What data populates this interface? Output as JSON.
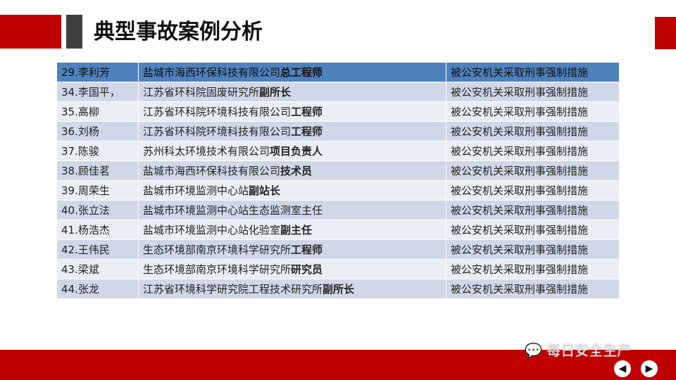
{
  "title": "典型事故案例分析",
  "rows": [
    {
      "name": "29.李利芳",
      "org": "盐城市海西环保科技有限公司",
      "role": "总工程师",
      "status": "被公安机关采取刑事强制措施"
    },
    {
      "name": "34.李国平，",
      "org": "江苏省环科院固废研究所",
      "role": "副所长",
      "status": "被公安机关采取刑事强制措施"
    },
    {
      "name": "35.高柳",
      "org": "江苏省环科院环境科技有限公司",
      "role": "工程师",
      "status": "被公安机关采取刑事强制措施"
    },
    {
      "name": "36.刘杨",
      "org": "江苏省环科院环境科技有限公司",
      "role": "工程师",
      "status": "被公安机关采取刑事强制措施"
    },
    {
      "name": "37.陈骏",
      "org": "苏州科太环境技术有限公司",
      "role": "项目负责人",
      "status": "被公安机关采取刑事强制措施"
    },
    {
      "name": "38.顾佳茗",
      "org": "盐城市海西环保科技有限公司",
      "role": "技术员",
      "status": "被公安机关采取刑事强制措施"
    },
    {
      "name": "39.周荣生",
      "org": "盐城市环境监测中心站",
      "role": "副站长",
      "status": "被公安机关采取刑事强制措施"
    },
    {
      "name": "40.张立法",
      "org": "盐城市环境监测中心站生态监测室主任",
      "role": "",
      "status": "被公安机关采取刑事强制措施"
    },
    {
      "name": "41.杨浩杰",
      "org": "盐城市环境监测中心站化验室",
      "role": "副主任",
      "status": "被公安机关采取刑事强制措施"
    },
    {
      "name": "42.王伟民",
      "org": "生态环境部南京环境科学研究所",
      "role": "工程师",
      "status": "被公安机关采取刑事强制措施"
    },
    {
      "name": "43.梁斌",
      "org": "生态环境部南京环境科学研究所",
      "role": "研究员",
      "status": "被公安机关采取刑事强制措施"
    },
    {
      "name": "44.张龙",
      "org": "江苏省环境科学研究院工程技术研究所",
      "role": "副所长",
      "status": "被公安机关采取刑事强制措施"
    }
  ],
  "watermark": "每日安全生产",
  "nav": {
    "prev_icon": "arrow-left-icon",
    "next_icon": "arrow-right-icon",
    "prev": "◀",
    "next": "▶"
  },
  "colors": {
    "red": "#c00000",
    "header": "#4f81bd",
    "row_dark": "#d0d8e8",
    "row_light": "#e9edf4"
  }
}
